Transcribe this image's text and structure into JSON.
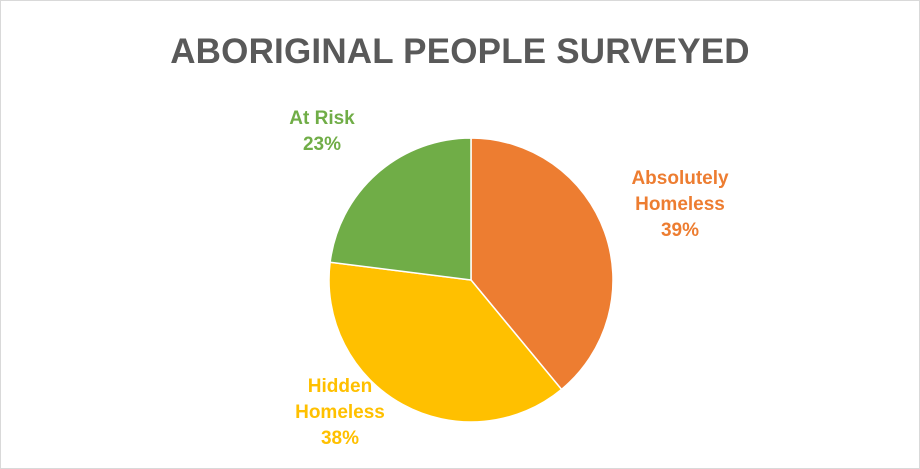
{
  "chart_data": {
    "type": "pie",
    "title": "ABORIGINAL PEOPLE SURVEYED",
    "slices": [
      {
        "label_lines": [
          "Absolutely",
          "Homeless"
        ],
        "value": 39,
        "pct_label": "39%",
        "color": "#ed7d31"
      },
      {
        "label_lines": [
          "Hidden",
          "Homeless"
        ],
        "value": 38,
        "pct_label": "38%",
        "color": "#ffc000"
      },
      {
        "label_lines": [
          "At Risk"
        ],
        "value": 23,
        "pct_label": "23%",
        "color": "#70ad47"
      }
    ],
    "start_angle": "12 o'clock",
    "direction": "clockwise",
    "legend": "none"
  }
}
